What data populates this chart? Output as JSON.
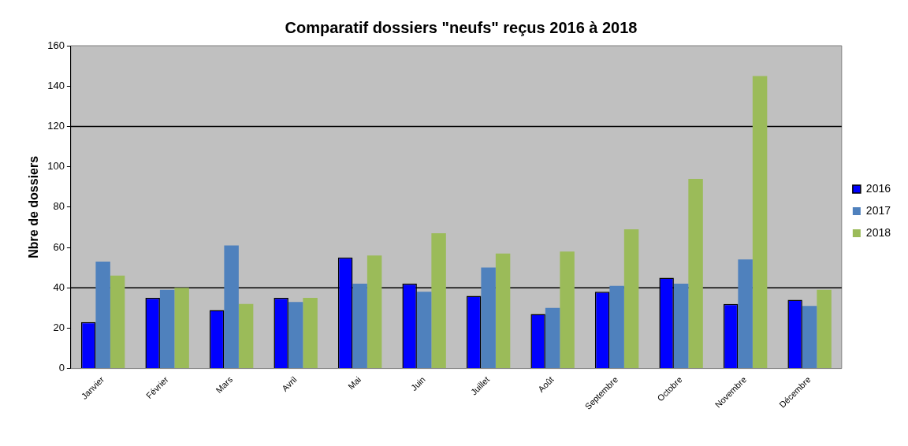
{
  "chart_data": {
    "type": "bar",
    "title": "Comparatif dossiers \"neufs\" reçus 2016 à 2018",
    "ylabel": "Nbre de dossiers",
    "categories": [
      "Janvier",
      "Février",
      "Mars",
      "Avril",
      "Mai",
      "Juin",
      "Juillet",
      "Août",
      "Septembre",
      "Octobre",
      "Novembre",
      "Décembre"
    ],
    "series": [
      {
        "name": "2016",
        "color": "#0000ff",
        "values": [
          23,
          35,
          29,
          35,
          55,
          42,
          36,
          27,
          38,
          45,
          32,
          34
        ]
      },
      {
        "name": "2017",
        "color": "#4f81bd",
        "values": [
          53,
          39,
          61,
          33,
          42,
          38,
          50,
          30,
          41,
          42,
          54,
          31
        ]
      },
      {
        "name": "2018",
        "color": "#9bbb59",
        "values": [
          46,
          40,
          32,
          35,
          56,
          67,
          57,
          58,
          69,
          94,
          145,
          39
        ]
      }
    ],
    "ylim": [
      0,
      160
    ],
    "yticks": [
      0,
      20,
      40,
      60,
      80,
      100,
      120,
      140,
      160
    ],
    "ref_lines": [
      {
        "axis": "y",
        "value": 40,
        "color": "#000000"
      },
      {
        "axis": "y",
        "value": 120,
        "color": "#000000"
      }
    ],
    "grid": false,
    "legend": "right"
  }
}
